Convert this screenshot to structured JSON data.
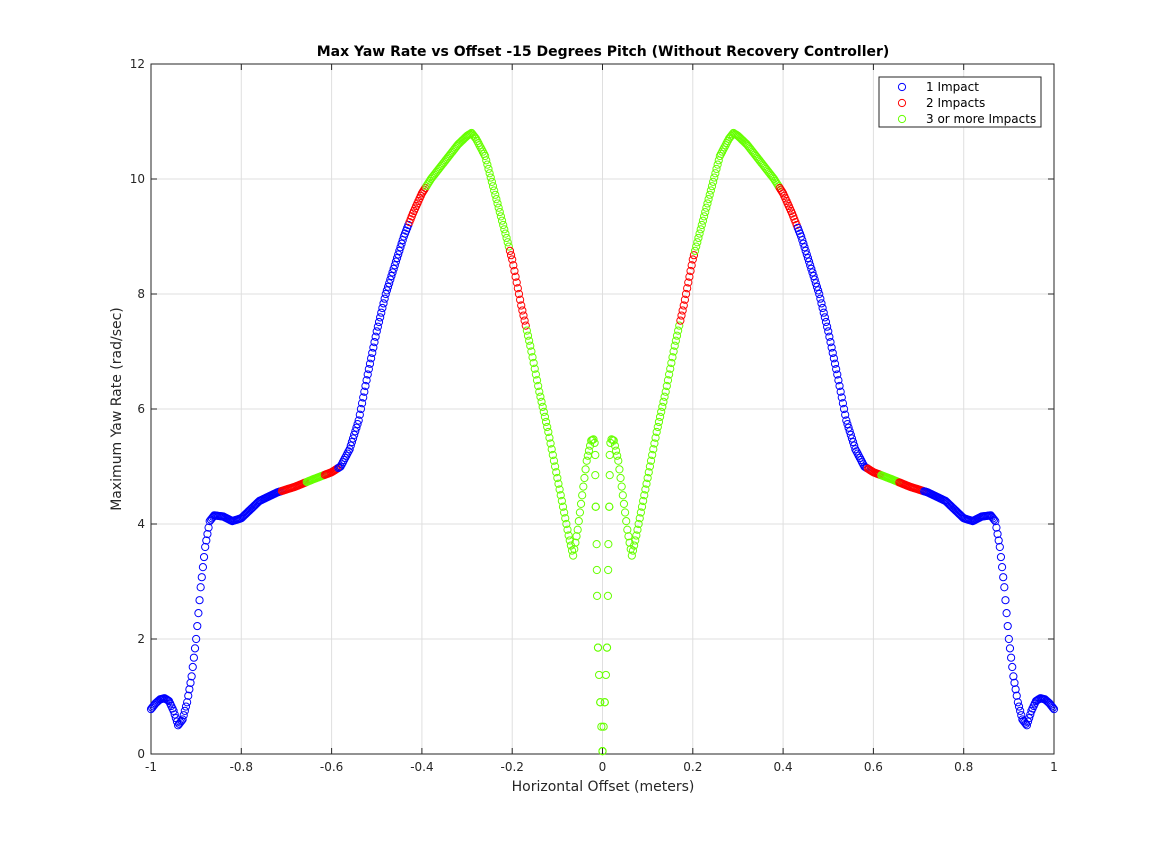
{
  "chart_data": {
    "type": "scatter",
    "title": "Max Yaw Rate vs Offset -15 Degrees Pitch (Without Recovery Controller)",
    "xlabel": "Horizontal Offset (meters)",
    "ylabel": "Maximum Yaw Rate (rad/sec)",
    "xlim": [
      -1,
      1
    ],
    "ylim": [
      0,
      12
    ],
    "xticks": [
      -1,
      -0.8,
      -0.6,
      -0.4,
      -0.2,
      0,
      0.2,
      0.4,
      0.6,
      0.8,
      1
    ],
    "xtick_labels": [
      "-1",
      "-0.8",
      "-0.6",
      "-0.4",
      "-0.2",
      "0",
      "0.2",
      "0.4",
      "0.6",
      "0.8",
      "1"
    ],
    "yticks": [
      0,
      2,
      4,
      6,
      8,
      10,
      12
    ],
    "ytick_labels": [
      "0",
      "2",
      "4",
      "6",
      "8",
      "10",
      "12"
    ],
    "grid": true,
    "legend_position": "top-right",
    "marker": "open-circle",
    "series": [
      {
        "name": "1 Impact",
        "color": "#0000ff"
      },
      {
        "name": "2 Impacts",
        "color": "#ff0000"
      },
      {
        "name": "3 or more Impacts",
        "color": "#66ff00"
      }
    ],
    "curve_right_half": [
      [
        0.0,
        0.05
      ],
      [
        0.005,
        0.9
      ],
      [
        0.01,
        1.85
      ],
      [
        0.012,
        2.75
      ],
      [
        0.013,
        3.65
      ],
      [
        0.015,
        4.3
      ],
      [
        0.016,
        4.85
      ],
      [
        0.016,
        5.2
      ],
      [
        0.018,
        5.48
      ],
      [
        0.025,
        5.45
      ],
      [
        0.035,
        5.1
      ],
      [
        0.045,
        4.5
      ],
      [
        0.055,
        3.9
      ],
      [
        0.065,
        3.45
      ],
      [
        0.075,
        3.8
      ],
      [
        0.085,
        4.2
      ],
      [
        0.1,
        4.8
      ],
      [
        0.12,
        5.6
      ],
      [
        0.14,
        6.3
      ],
      [
        0.16,
        7.1
      ],
      [
        0.18,
        7.8
      ],
      [
        0.2,
        8.6
      ],
      [
        0.22,
        9.2
      ],
      [
        0.24,
        9.8
      ],
      [
        0.26,
        10.4
      ],
      [
        0.28,
        10.7
      ],
      [
        0.29,
        10.8
      ],
      [
        0.3,
        10.75
      ],
      [
        0.32,
        10.6
      ],
      [
        0.34,
        10.4
      ],
      [
        0.36,
        10.2
      ],
      [
        0.38,
        10.0
      ],
      [
        0.4,
        9.75
      ],
      [
        0.42,
        9.4
      ],
      [
        0.44,
        9.0
      ],
      [
        0.46,
        8.5
      ],
      [
        0.48,
        8.0
      ],
      [
        0.5,
        7.35
      ],
      [
        0.52,
        6.6
      ],
      [
        0.54,
        5.8
      ],
      [
        0.56,
        5.3
      ],
      [
        0.58,
        5.0
      ],
      [
        0.6,
        4.9
      ],
      [
        0.64,
        4.78
      ],
      [
        0.68,
        4.65
      ],
      [
        0.72,
        4.55
      ],
      [
        0.76,
        4.4
      ],
      [
        0.8,
        4.1
      ],
      [
        0.82,
        4.05
      ],
      [
        0.84,
        4.13
      ],
      [
        0.86,
        4.15
      ],
      [
        0.87,
        4.05
      ],
      [
        0.88,
        3.6
      ],
      [
        0.89,
        2.9
      ],
      [
        0.9,
        2.0
      ],
      [
        0.91,
        1.35
      ],
      [
        0.92,
        0.9
      ],
      [
        0.93,
        0.6
      ],
      [
        0.94,
        0.5
      ],
      [
        0.95,
        0.75
      ],
      [
        0.96,
        0.92
      ],
      [
        0.97,
        0.97
      ],
      [
        0.98,
        0.95
      ],
      [
        0.99,
        0.88
      ],
      [
        1.0,
        0.78
      ]
    ],
    "category_by_abs_offset": [
      {
        "from": 0.0,
        "to": 0.17,
        "series": "3 or more Impacts"
      },
      {
        "from": 0.17,
        "to": 0.205,
        "series": "2 Impacts"
      },
      {
        "from": 0.205,
        "to": 0.39,
        "series": "3 or more Impacts"
      },
      {
        "from": 0.39,
        "to": 0.43,
        "series": "2 Impacts"
      },
      {
        "from": 0.43,
        "to": 0.585,
        "series": "1 Impact"
      },
      {
        "from": 0.585,
        "to": 0.615,
        "series": "2 Impacts"
      },
      {
        "from": 0.615,
        "to": 0.655,
        "series": "3 or more Impacts"
      },
      {
        "from": 0.655,
        "to": 0.71,
        "series": "2 Impacts"
      },
      {
        "from": 0.71,
        "to": 1.0,
        "series": "1 Impact"
      }
    ]
  }
}
